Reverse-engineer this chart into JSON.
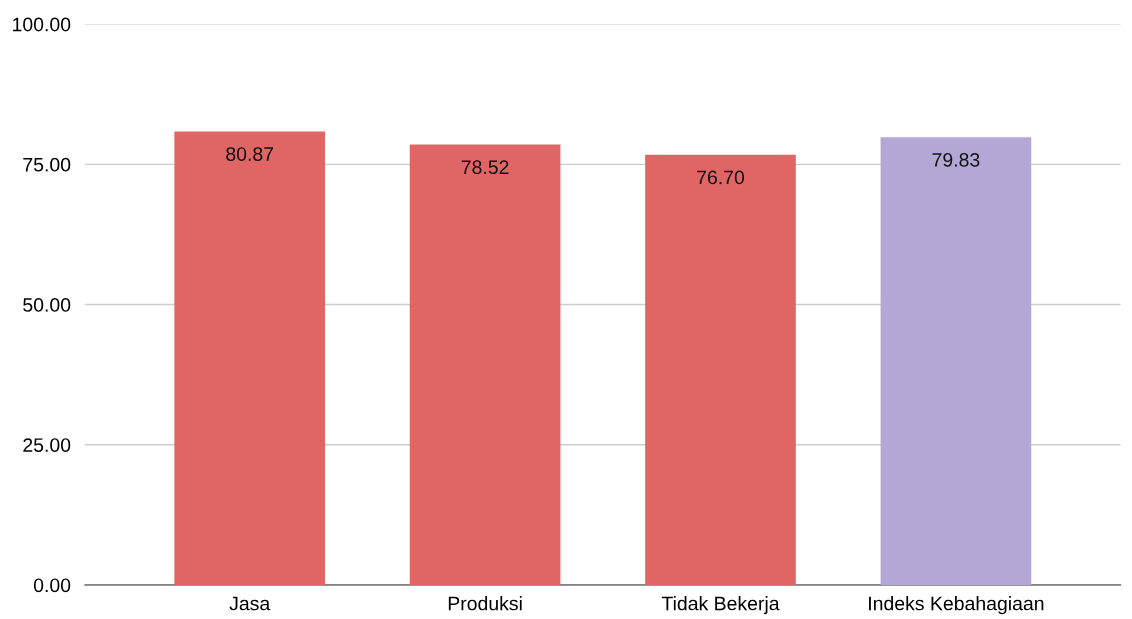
{
  "chart_data": {
    "type": "bar",
    "categories": [
      "Jasa",
      "Produksi",
      "Tidak Bekerja",
      "Indeks Kebahagiaan"
    ],
    "values": [
      80.87,
      78.52,
      76.7,
      79.83
    ],
    "colors": [
      "#e06666",
      "#e06666",
      "#e06666",
      "#b4a7d6"
    ],
    "ylim": [
      0,
      100
    ],
    "yticks": [
      {
        "value": 0,
        "label": "0.00"
      },
      {
        "value": 25,
        "label": "25.00"
      },
      {
        "value": 50,
        "label": "50.00"
      },
      {
        "value": 75,
        "label": "75.00"
      },
      {
        "value": 100,
        "label": "100.00"
      }
    ],
    "grid": "y",
    "value_labels": [
      "80.87",
      "78.52",
      "76.70",
      "79.83"
    ]
  }
}
